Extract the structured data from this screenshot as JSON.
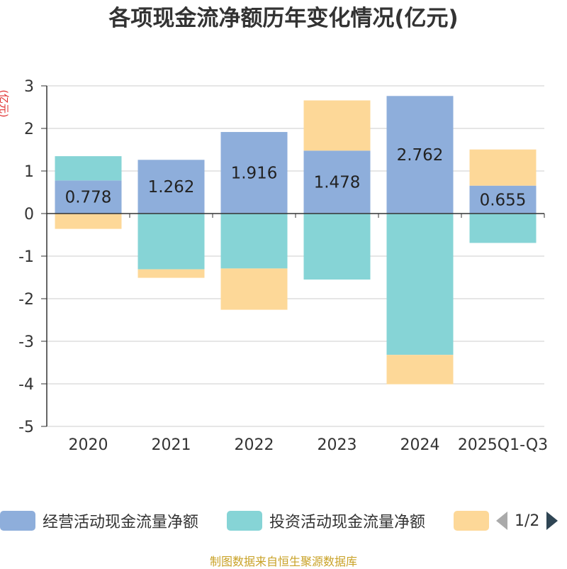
{
  "chart_data": {
    "type": "bar",
    "stacked": true,
    "title": "各项现金流净额历年变化情况(亿元)",
    "ylabel": "(亿元)",
    "ylim": [
      -5,
      3
    ],
    "yticks": [
      3,
      2,
      1,
      0,
      -1,
      -2,
      -3,
      -4,
      -5
    ],
    "categories": [
      "2020",
      "2021",
      "2022",
      "2023",
      "2024",
      "2025Q1-Q3"
    ],
    "series": [
      {
        "name": "经营活动现金流量净额",
        "color": "#8eaedb",
        "values": [
          0.778,
          1.262,
          1.916,
          1.478,
          2.762,
          0.655
        ],
        "labels_shown": true
      },
      {
        "name": "投资活动现金流量净额",
        "color": "#86d4d6",
        "values": [
          0.57,
          -1.31,
          -1.29,
          -1.55,
          -3.32,
          -0.69
        ]
      },
      {
        "name": "",
        "color": "#fdd898",
        "values": [
          -0.36,
          -0.2,
          -0.97,
          1.18,
          -0.69,
          0.85
        ]
      }
    ],
    "legend": {
      "position": "bottom",
      "page": "1/2"
    }
  },
  "footer": "制图数据来自恒生聚源数据库"
}
